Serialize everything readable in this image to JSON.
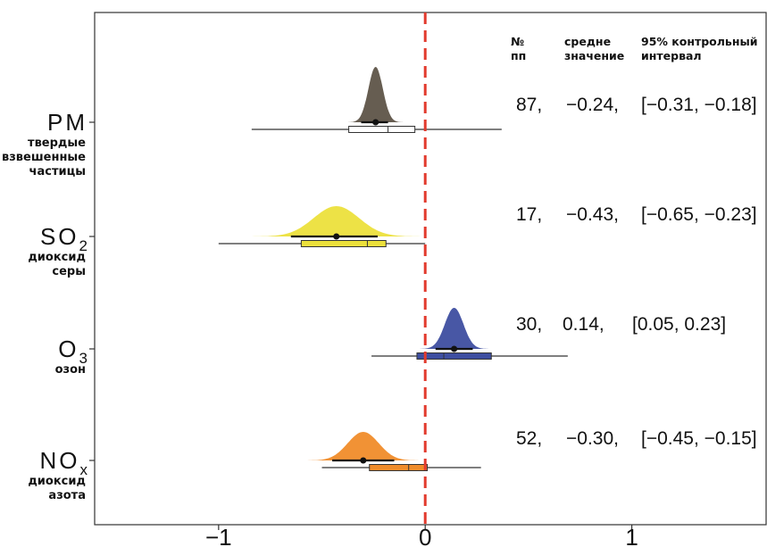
{
  "chart_data": {
    "type": "density",
    "xlim": [
      -1.6,
      1.65
    ],
    "x_ticks": [
      -1,
      0,
      1
    ],
    "x_tick_labels": [
      "−1",
      "0",
      "1"
    ],
    "reference_line_x": 0,
    "table_header": {
      "n_line1": "№",
      "n_line2": "пп",
      "mean_line1": "средне",
      "mean_line2": "значение",
      "ci_line1": "95% контрольный",
      "ci_line2": "интервал"
    },
    "series": [
      {
        "label_main": "PM",
        "label_sub": "",
        "desc_lines": [
          "твердые",
          "взвешенные",
          "частицы"
        ],
        "color": "#5e5448",
        "n": 87,
        "mean": -0.24,
        "ci": [
          -0.31,
          -0.18
        ],
        "density_sd": 0.035,
        "range": [
          -0.84,
          0.37
        ],
        "box": [
          -0.37,
          -0.05
        ],
        "median": -0.18,
        "n_text": "87,",
        "mean_text": "−0.24,",
        "ci_text": "[−0.31, −0.18]"
      },
      {
        "label_main": "SO",
        "label_sub": "2",
        "desc_lines": [
          "диоксид",
          "серы"
        ],
        "color": "#ece03c",
        "n": 17,
        "mean": -0.43,
        "ci": [
          -0.65,
          -0.23
        ],
        "density_sd": 0.11,
        "range": [
          -1.0,
          0.0
        ],
        "box": [
          -0.6,
          -0.19
        ],
        "median": -0.28,
        "n_text": "17,",
        "mean_text": "−0.43,",
        "ci_text": "[−0.65, −0.23]"
      },
      {
        "label_main": "O",
        "label_sub": "3",
        "desc_lines": [
          "озон"
        ],
        "color": "#3e4ea0",
        "n": 30,
        "mean": 0.14,
        "ci": [
          0.05,
          0.23
        ],
        "density_sd": 0.045,
        "range": [
          -0.26,
          0.69
        ],
        "box": [
          -0.04,
          0.32
        ],
        "median": 0.09,
        "n_text": "30,",
        "mean_text": "0.14,",
        "ci_text": "[0.05, 0.23]"
      },
      {
        "label_main": "NO",
        "label_sub": "x",
        "desc_lines": [
          "диоксид",
          "азота"
        ],
        "color": "#f08c2a",
        "n": 52,
        "mean": -0.3,
        "ci": [
          -0.45,
          -0.15
        ],
        "density_sd": 0.075,
        "range": [
          -0.5,
          0.27
        ],
        "box": [
          -0.27,
          0.01
        ],
        "median": -0.08,
        "n_text": "52,",
        "mean_text": "−0.30,",
        "ci_text": "[−0.45, −0.15]"
      }
    ]
  }
}
